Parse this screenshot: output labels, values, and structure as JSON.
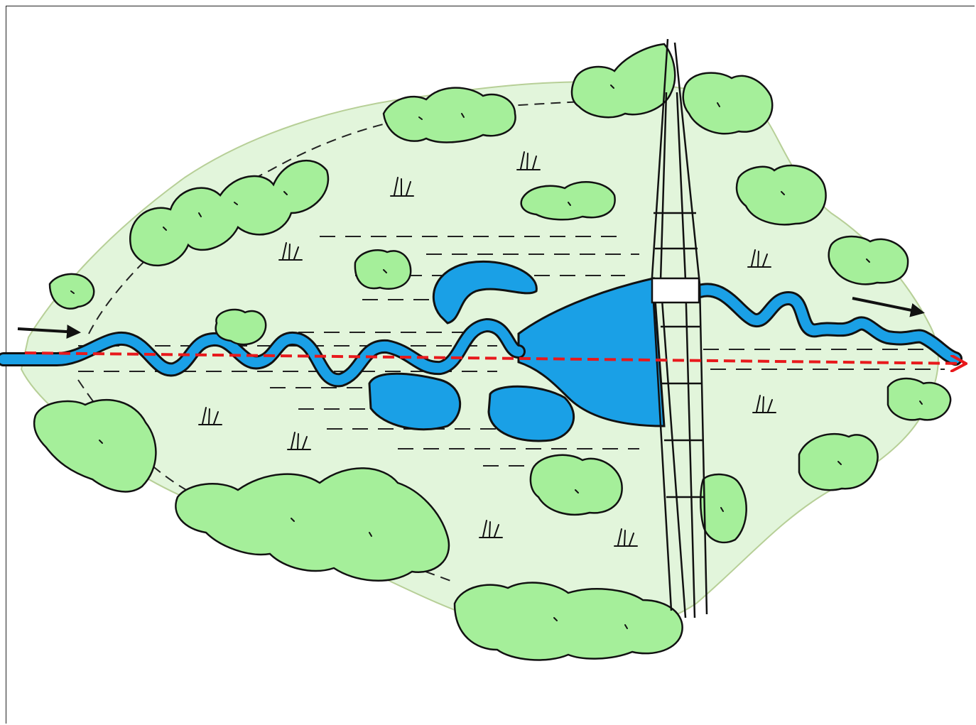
{
  "diagram": {
    "labels": [],
    "colors": {
      "floodplain": "#e2f5db",
      "floodplain_edge": "#b7cf97",
      "water": "#1aa0e6",
      "vegetation": "#a5ef9a",
      "ink": "#111111",
      "flow_line": "#e8191c"
    },
    "elements": {
      "floodplain": "floodplain-area",
      "river": "meandering-river",
      "reservoir": "reservoir-lake",
      "oxbows": "oxbow-lakes",
      "dam": "dam-structure",
      "vegetation": "riparian-vegetation",
      "grass": "grass-tuft-icons",
      "flow_in": "inflow-arrow",
      "flow_out": "outflow-arrow",
      "straight_channel": "dashed-red-straight-line"
    }
  }
}
